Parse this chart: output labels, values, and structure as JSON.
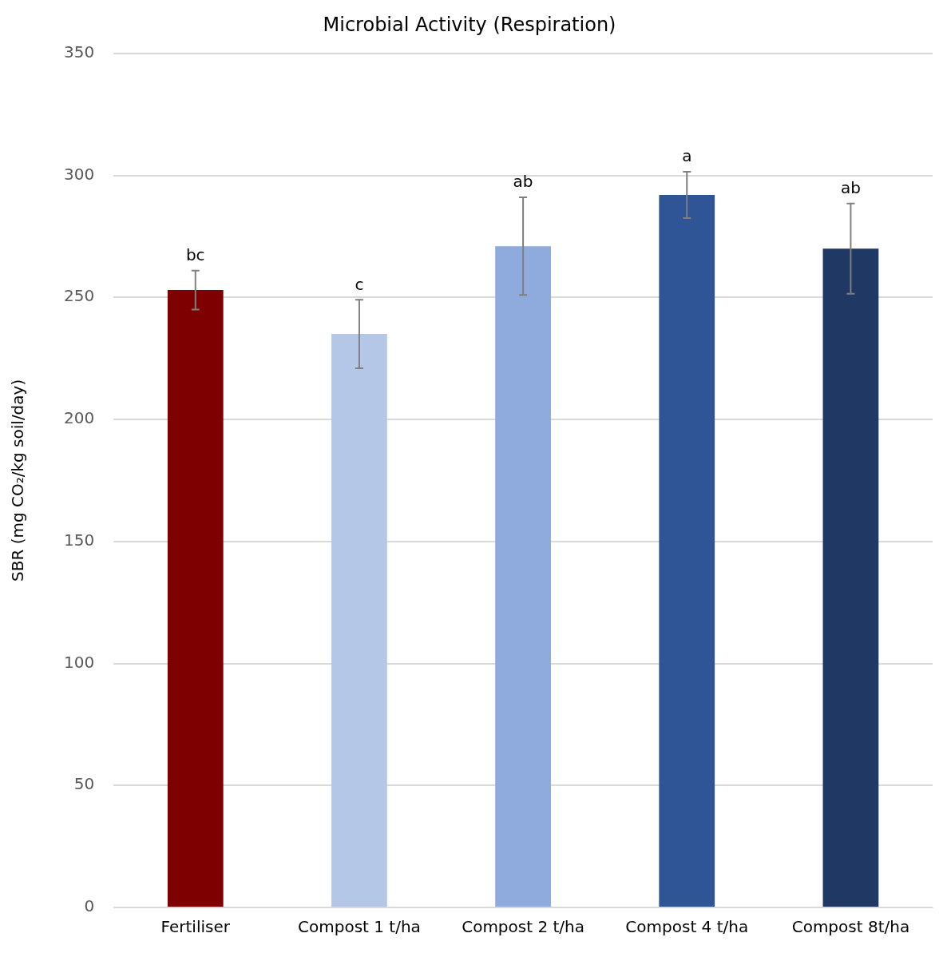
{
  "chart_data": {
    "type": "bar",
    "title": "Microbial Activity (Respiration)",
    "ylabel": "SBR (mg CO₂/kg soil/day)",
    "categories": [
      "Fertiliser",
      "Compost 1 t/ha",
      "Compost 2 t/ha",
      "Compost 4 t/ha",
      "Compost 8t/ha"
    ],
    "values": [
      253,
      235,
      271,
      292,
      270
    ],
    "colors": [
      "#7f0000",
      "#b4c7e7",
      "#8faadc",
      "#2f5597",
      "#203864"
    ],
    "errors": [
      8,
      14,
      20,
      9.5,
      18.5
    ],
    "ylim": [
      0,
      350
    ],
    "yticks": [
      0,
      50,
      100,
      150,
      200,
      250,
      300,
      350
    ],
    "grid": "y",
    "annotations": [
      {
        "text": "bc",
        "x": "Fertiliser",
        "y": 261
      },
      {
        "text": "c",
        "x": "Compost 1 t/ha",
        "y": 249
      },
      {
        "text": "ab",
        "x": "Compost 2 t/ha",
        "y": 291
      },
      {
        "text": "a",
        "x": "Compost 4 t/ha",
        "y": 301.5
      },
      {
        "text": "ab",
        "x": "Compost 8t/ha",
        "y": 288.5
      }
    ]
  }
}
